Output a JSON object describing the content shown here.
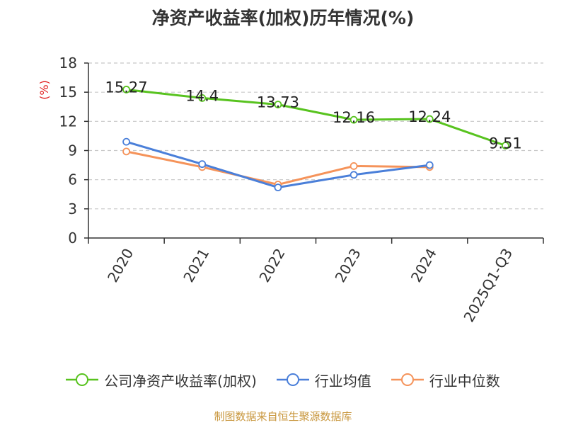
{
  "title": "净资产收益率(加权)历年情况(%)",
  "source": "制图数据来自恒生聚源数据库",
  "colors": {
    "company": "#58c31f",
    "industry_avg": "#4a7fd9",
    "industry_median": "#f5935a",
    "axis": "#333333",
    "grid": "#c8c8c8",
    "unit": "#e02020"
  },
  "chart_data": {
    "type": "line",
    "title": "净资产收益率(加权)历年情况(%)",
    "ylabel": "(%)",
    "xlabel": "",
    "ylim": [
      0,
      18
    ],
    "yticks": [
      0,
      3,
      6,
      9,
      12,
      15,
      18
    ],
    "grid": true,
    "categories": [
      "2020",
      "2021",
      "2022",
      "2023",
      "2024",
      "2025Q1-Q3"
    ],
    "series": [
      {
        "key": "company",
        "name": "公司净资产收益率(加权)",
        "values": [
          15.27,
          14.4,
          13.73,
          12.16,
          12.24,
          9.51
        ],
        "labels": [
          "15.27",
          "14.4",
          "13.73",
          "12.16",
          "12.24",
          "9.51"
        ]
      },
      {
        "key": "industry_avg",
        "name": "行业均值",
        "values": [
          9.9,
          7.6,
          5.2,
          6.5,
          7.5,
          null
        ]
      },
      {
        "key": "industry_median",
        "name": "行业中位数",
        "values": [
          8.9,
          7.3,
          5.5,
          7.4,
          7.3,
          null
        ]
      }
    ]
  }
}
